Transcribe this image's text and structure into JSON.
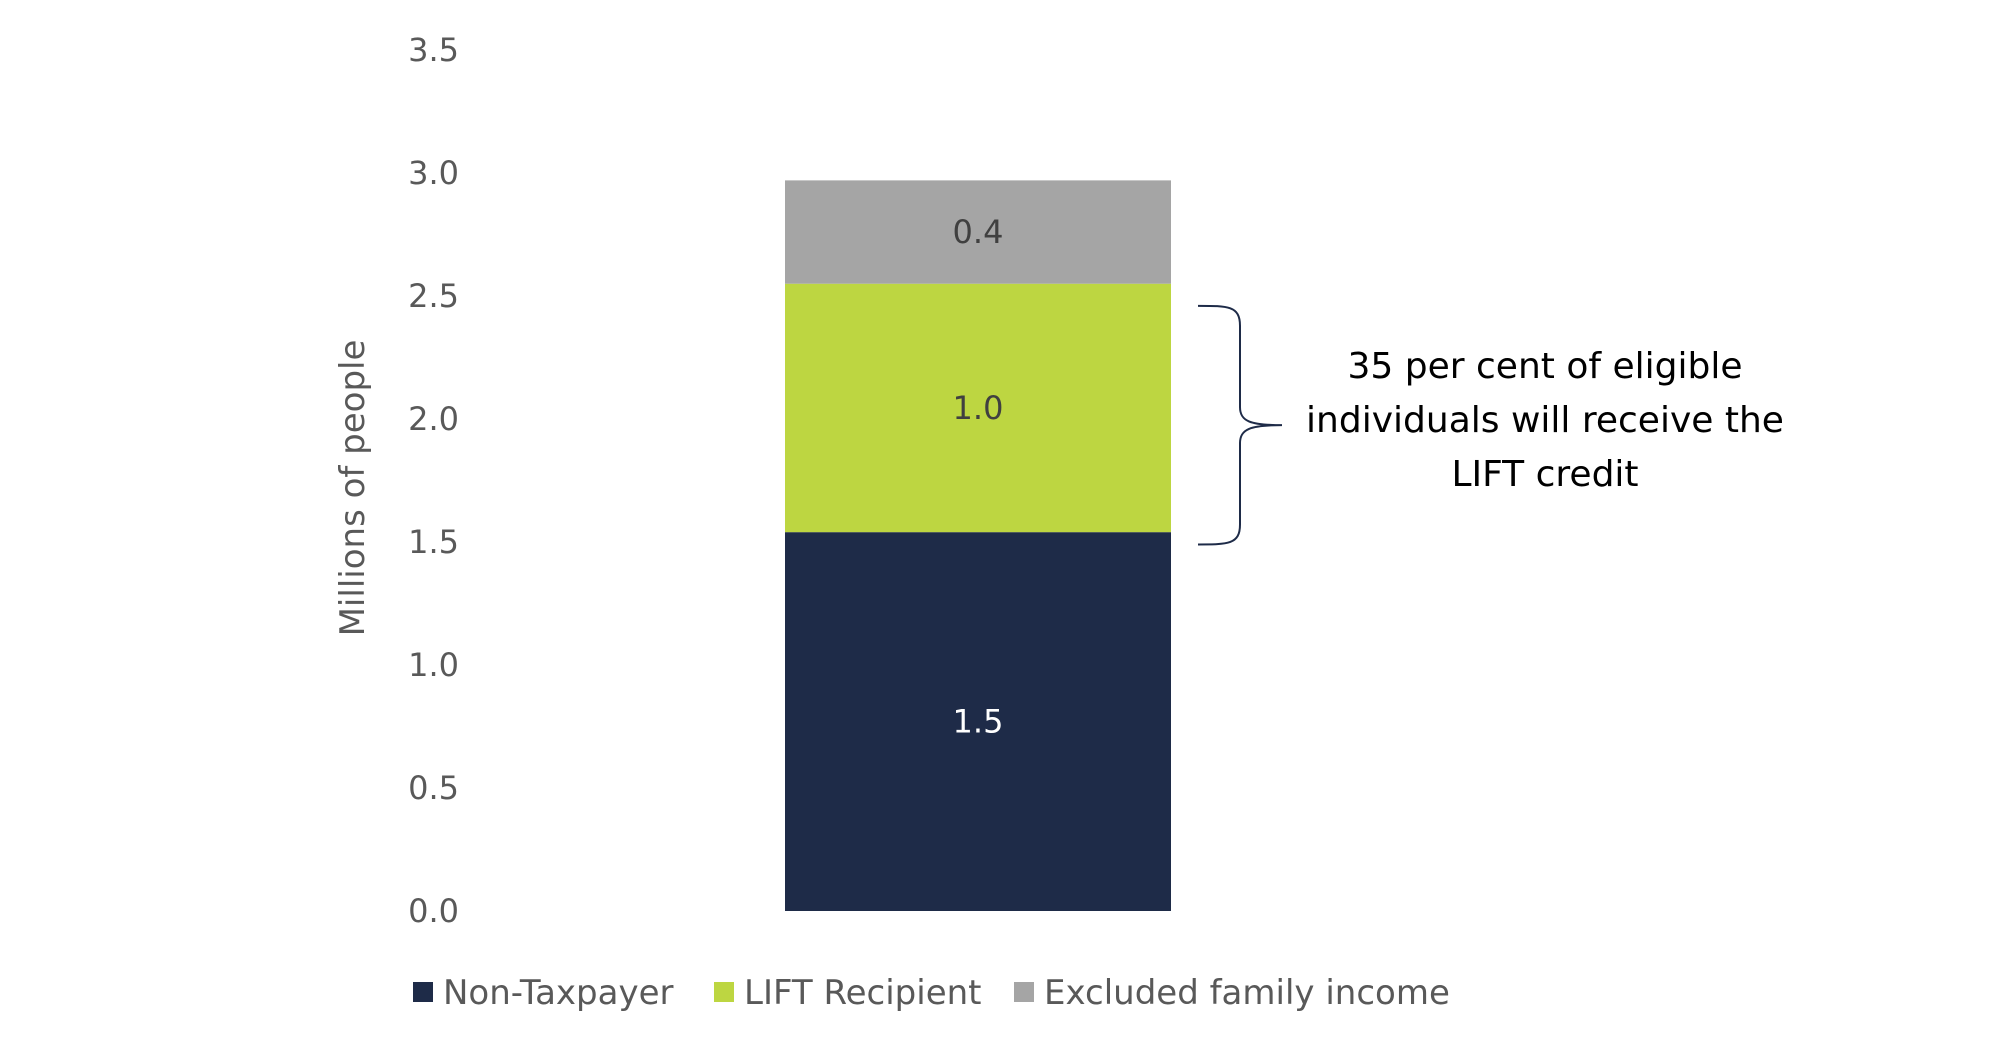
{
  "chart_data": {
    "type": "bar",
    "stacked": true,
    "title": "",
    "xlabel": "",
    "ylabel": "Millions of people",
    "ylim": [
      0,
      3.5
    ],
    "y_ticks": [
      "0.0",
      "0.5",
      "1.0",
      "1.5",
      "2.0",
      "2.5",
      "3.0",
      "3.5"
    ],
    "grid": false,
    "legend_position": "bottom",
    "categories": [
      ""
    ],
    "series": [
      {
        "name": "Non-Taxpayer",
        "values": [
          1.54
        ],
        "label": "1.5",
        "color": "#1e2b48",
        "label_color": "#ffffff"
      },
      {
        "name": "LIFT Recipient",
        "values": [
          1.01
        ],
        "label": "1.0",
        "color": "#bdd641",
        "label_color": "#404040"
      },
      {
        "name": "Excluded family income",
        "values": [
          0.42
        ],
        "label": "0.4",
        "color": "#a5a5a5",
        "label_color": "#404040"
      }
    ],
    "annotation": {
      "text_lines": [
        "35 per cent of eligible",
        "individuals will receive the",
        "LIFT credit"
      ],
      "brace_from": 1.49,
      "brace_to": 2.46
    }
  }
}
